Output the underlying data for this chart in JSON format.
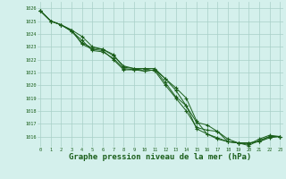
{
  "background_color": "#d4f0ec",
  "grid_color": "#a8cfc8",
  "line_color": "#1a5e1a",
  "marker_color": "#1a5e1a",
  "xlabel": "Graphe pression niveau de la mer (hPa)",
  "xlabel_color": "#1a5e1a",
  "xlabel_fontsize": 6.5,
  "x_ticks": [
    0,
    1,
    2,
    3,
    4,
    5,
    6,
    7,
    8,
    9,
    10,
    11,
    12,
    13,
    14,
    15,
    16,
    17,
    18,
    19,
    20,
    21,
    22,
    23
  ],
  "xlim": [
    -0.3,
    23.3
  ],
  "ylim": [
    1015.2,
    1026.5
  ],
  "y_ticks": [
    1016,
    1017,
    1018,
    1019,
    1020,
    1021,
    1022,
    1023,
    1024,
    1025,
    1026
  ],
  "series": [
    [
      1025.8,
      1025.0,
      1024.7,
      1024.3,
      1023.8,
      1023.0,
      1022.8,
      1022.3,
      1021.5,
      1021.3,
      1021.1,
      1021.2,
      1020.5,
      1019.8,
      1019.0,
      1017.2,
      1016.2,
      1015.8,
      1015.6,
      1015.5,
      1015.5,
      1015.6,
      1015.9,
      1016.0
    ],
    [
      1025.8,
      1025.0,
      1024.7,
      1024.2,
      1023.5,
      1022.7,
      1022.6,
      1022.1,
      1021.3,
      1021.2,
      1021.1,
      1021.2,
      1020.2,
      1019.1,
      1018.4,
      1016.6,
      1016.2,
      1015.9,
      1015.6,
      1015.5,
      1015.3,
      1015.7,
      1016.0,
      1016.0
    ],
    [
      1025.8,
      1025.0,
      1024.7,
      1024.3,
      1023.2,
      1022.8,
      1022.7,
      1022.0,
      1021.2,
      1021.2,
      1021.3,
      1021.1,
      1020.0,
      1019.0,
      1018.0,
      1016.7,
      1016.5,
      1016.4,
      1015.6,
      1015.5,
      1015.5,
      1015.6,
      1016.0,
      1016.0
    ],
    [
      1025.8,
      1025.0,
      1024.7,
      1024.2,
      1023.3,
      1022.9,
      1022.8,
      1022.4,
      1021.4,
      1021.3,
      1021.3,
      1021.3,
      1020.5,
      1019.6,
      1018.4,
      1017.1,
      1016.9,
      1016.4,
      1015.8,
      1015.5,
      1015.4,
      1015.8,
      1016.1,
      1016.0
    ]
  ]
}
